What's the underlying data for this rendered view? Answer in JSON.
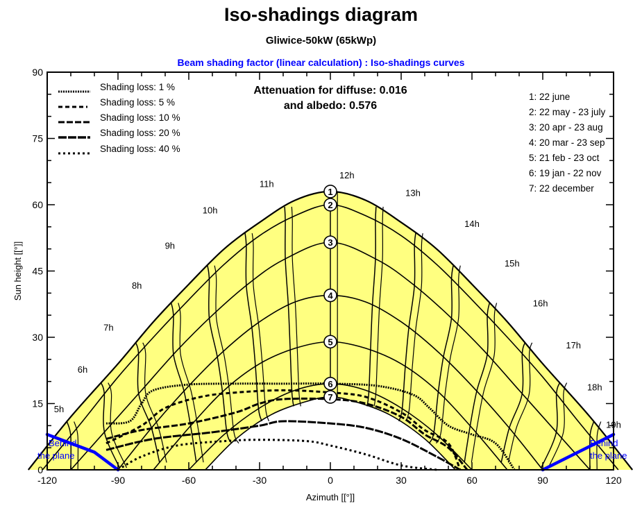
{
  "header": {
    "title": "Iso-shadings diagram",
    "subtitle": "Gliwice-50kW  (65kWp)",
    "chart_title": "Beam shading factor (linear calculation) : Iso-shadings curves"
  },
  "attenuation": {
    "line1": "Attenuation for diffuse: 0.016",
    "line2": "and albedo: 0.576",
    "diffuse": 0.016,
    "albedo": 0.576
  },
  "legend": {
    "items": [
      {
        "label": "Shading loss: 1 %",
        "style": "dotted-fine"
      },
      {
        "label": "Shading loss: 5 %",
        "style": "dashed"
      },
      {
        "label": "Shading loss: 10 %",
        "style": "long-dash"
      },
      {
        "label": "Shading loss: 20 %",
        "style": "long-dash-thick"
      },
      {
        "label": "Shading loss: 40 %",
        "style": "dotted-coarse"
      }
    ]
  },
  "date_legend": {
    "items": [
      {
        "label": "1: 22 june"
      },
      {
        "label": "2: 22 may - 23 july"
      },
      {
        "label": "3: 20 apr - 23 aug"
      },
      {
        "label": "4: 20 mar - 23 sep"
      },
      {
        "label": "5: 21 feb - 23 oct"
      },
      {
        "label": "6: 19 jan - 22 nov"
      },
      {
        "label": "7: 22 december"
      }
    ]
  },
  "behind_plane": {
    "line1": "Behind",
    "line2": "the plane"
  },
  "colors": {
    "sun_area": "#ffff80",
    "shaded_area": "#ffffff",
    "lines": "#000000",
    "behind_plane": "#0000ff",
    "chart_title": "#0000ff"
  },
  "chart_data": {
    "type": "line",
    "title": "Iso-shadings diagram",
    "subtitle": "Gliwice-50kW  (65kWp)",
    "xlabel": "Azimuth [[°]]",
    "ylabel": "Sun height [[°]]",
    "xlim": [
      -120,
      120
    ],
    "ylim": [
      0,
      90
    ],
    "xticks": [
      -120,
      -90,
      -60,
      -30,
      0,
      30,
      60,
      90,
      120
    ],
    "yticks": [
      0,
      15,
      30,
      45,
      60,
      75,
      90
    ],
    "grid": false,
    "legend_position": "upper-left",
    "sun_paths": [
      {
        "name": "1: 22 june",
        "max_height": 63,
        "x": [
          -128,
          -110,
          -90,
          -75,
          -60,
          -45,
          -30,
          -15,
          0,
          15,
          30,
          45,
          60,
          75,
          90,
          110,
          128
        ],
        "y": [
          0,
          12,
          24,
          33.5,
          42,
          50,
          56,
          61,
          63,
          61,
          56,
          50,
          42,
          33.5,
          24,
          12,
          0
        ]
      },
      {
        "name": "2: 22 may - 23 july",
        "max_height": 60,
        "x": [
          -122,
          -105,
          -90,
          -75,
          -60,
          -45,
          -30,
          -15,
          0,
          15,
          30,
          45,
          60,
          75,
          90,
          105,
          122
        ],
        "y": [
          0,
          11,
          21,
          30,
          38.5,
          46.5,
          53,
          57.5,
          60,
          57.5,
          53,
          46.5,
          38.5,
          30,
          21,
          11,
          0
        ]
      },
      {
        "name": "3: 20 apr - 23 aug",
        "max_height": 51.5,
        "x": [
          -110,
          -95,
          -80,
          -65,
          -50,
          -35,
          -20,
          0,
          20,
          35,
          50,
          65,
          80,
          95,
          110
        ],
        "y": [
          0,
          9,
          18,
          27,
          35,
          42,
          47.5,
          51.5,
          47.5,
          42,
          35,
          27,
          18,
          9,
          0
        ]
      },
      {
        "name": "4: 20 mar - 23 sep",
        "max_height": 39.5,
        "x": [
          -90,
          -75,
          -60,
          -45,
          -30,
          -15,
          0,
          15,
          30,
          45,
          60,
          75,
          90
        ],
        "y": [
          0,
          10,
          19,
          27,
          33.5,
          38,
          39.5,
          38,
          33.5,
          27,
          19,
          10,
          0
        ]
      },
      {
        "name": "5: 21 feb - 23 oct",
        "max_height": 29,
        "x": [
          -75,
          -60,
          -45,
          -30,
          -15,
          0,
          15,
          30,
          45,
          60,
          75
        ],
        "y": [
          0,
          9.5,
          18,
          24,
          27.5,
          29,
          27.5,
          24,
          18,
          9.5,
          0
        ]
      },
      {
        "name": "6: 19 jan - 22 nov",
        "max_height": 19.5,
        "x": [
          -60,
          -45,
          -30,
          -15,
          0,
          15,
          30,
          45,
          60
        ],
        "y": [
          0,
          8,
          14,
          18,
          19.5,
          18,
          14,
          8,
          0
        ]
      },
      {
        "name": "7: 22 december",
        "max_height": 16.5,
        "x": [
          -53,
          -40,
          -25,
          -10,
          0,
          10,
          25,
          40,
          53
        ],
        "y": [
          0,
          7,
          12.5,
          15.5,
          16.5,
          15.5,
          12.5,
          7,
          0
        ]
      }
    ],
    "hour_labels": [
      {
        "label": "5h",
        "x": -115,
        "y": 13
      },
      {
        "label": "6h",
        "x": -105,
        "y": 22
      },
      {
        "label": "7h",
        "x": -94,
        "y": 31.5
      },
      {
        "label": "8h",
        "x": -82,
        "y": 41
      },
      {
        "label": "9h",
        "x": -68,
        "y": 50
      },
      {
        "label": "10h",
        "x": -51,
        "y": 58
      },
      {
        "label": "11h",
        "x": -27,
        "y": 64
      },
      {
        "label": "12h",
        "x": 7,
        "y": 66
      },
      {
        "label": "13h",
        "x": 35,
        "y": 62
      },
      {
        "label": "14h",
        "x": 60,
        "y": 55
      },
      {
        "label": "15h",
        "x": 77,
        "y": 46
      },
      {
        "label": "16h",
        "x": 89,
        "y": 37
      },
      {
        "label": "17h",
        "x": 103,
        "y": 27.5
      },
      {
        "label": "18h",
        "x": 112,
        "y": 18
      },
      {
        "label": "19h",
        "x": 120,
        "y": 9.5
      }
    ],
    "shading_loss_curves": [
      {
        "name": "Shading loss: 1 %",
        "x": [
          -95,
          -85,
          -80,
          -75,
          -60,
          -40,
          -20,
          0,
          20,
          35,
          42,
          50,
          60,
          70,
          78
        ],
        "y": [
          10.5,
          11,
          15,
          18,
          19.3,
          19.5,
          19.5,
          19.5,
          19,
          17,
          14,
          10,
          8,
          6,
          0
        ]
      },
      {
        "name": "Shading loss: 5 %",
        "x": [
          -95,
          -80,
          -70,
          -55,
          -40,
          -20,
          0,
          15,
          30,
          40,
          50,
          55
        ],
        "y": [
          6,
          10,
          14,
          16.5,
          17.5,
          18,
          17.5,
          16.5,
          13,
          9,
          6,
          0
        ]
      },
      {
        "name": "Shading loss: 10 %",
        "x": [
          -95,
          -80,
          -60,
          -40,
          -30,
          -20,
          0,
          15,
          30,
          40,
          50,
          58
        ],
        "y": [
          7,
          9,
          10.5,
          13,
          15,
          16,
          16,
          15,
          12,
          8,
          5,
          0
        ]
      },
      {
        "name": "Shading loss: 20 %",
        "x": [
          -95,
          -75,
          -50,
          -30,
          -20,
          0,
          15,
          30,
          45,
          55
        ],
        "y": [
          4.5,
          7,
          8.5,
          10,
          11,
          10.5,
          9.5,
          7,
          3,
          0
        ]
      },
      {
        "name": "Shading loss: 40 %",
        "x": [
          -90,
          -80,
          -65,
          -45,
          -30,
          -10,
          0,
          15,
          30,
          45
        ],
        "y": [
          0,
          3,
          5.5,
          6.5,
          6.8,
          6.5,
          5.5,
          3.5,
          1,
          0
        ]
      }
    ],
    "behind_plane_lines": [
      {
        "x": [
          -120,
          -100,
          -90
        ],
        "y": [
          8,
          4,
          0
        ]
      },
      {
        "x": [
          90,
          105,
          120
        ],
        "y": [
          0,
          4,
          8
        ]
      }
    ],
    "day_markers": [
      {
        "label": "1",
        "x": 0,
        "y": 63
      },
      {
        "label": "2",
        "x": 0,
        "y": 60
      },
      {
        "label": "3",
        "x": 0,
        "y": 51.5
      },
      {
        "label": "4",
        "x": 0,
        "y": 39.5
      },
      {
        "label": "5",
        "x": 0,
        "y": 29
      },
      {
        "label": "6",
        "x": 0,
        "y": 19.5
      },
      {
        "label": "7",
        "x": 0,
        "y": 16.5
      }
    ]
  }
}
